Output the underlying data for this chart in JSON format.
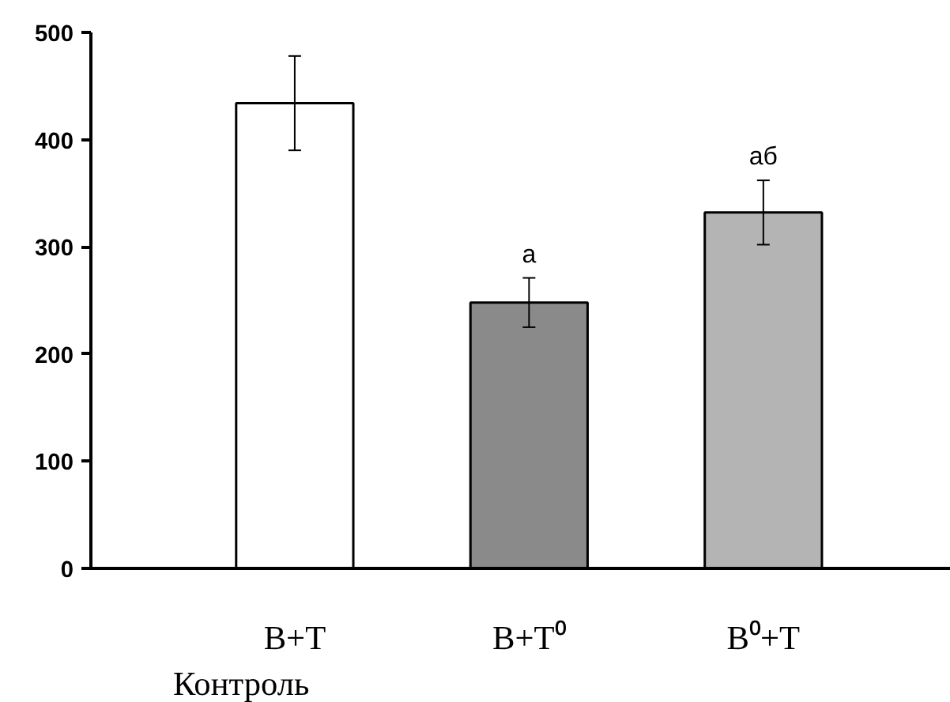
{
  "chart_data": {
    "type": "bar",
    "categories": [
      "B+T",
      "B+T⁰",
      "B⁰+T"
    ],
    "values": [
      434,
      248,
      332
    ],
    "errors": [
      44,
      23,
      30
    ],
    "colors": [
      "#ffffff",
      "#8a8a8a",
      "#b4b4b4"
    ],
    "ylim": [
      0,
      500
    ],
    "yticks": [
      0,
      100,
      200,
      300,
      400,
      500
    ],
    "grid": false,
    "annotations": [
      "Контроль",
      {
        "text": "а",
        "x": "B+T⁰",
        "y": 271
      },
      {
        "text": "аб",
        "x": "B⁰+T",
        "y": 362
      }
    ]
  }
}
